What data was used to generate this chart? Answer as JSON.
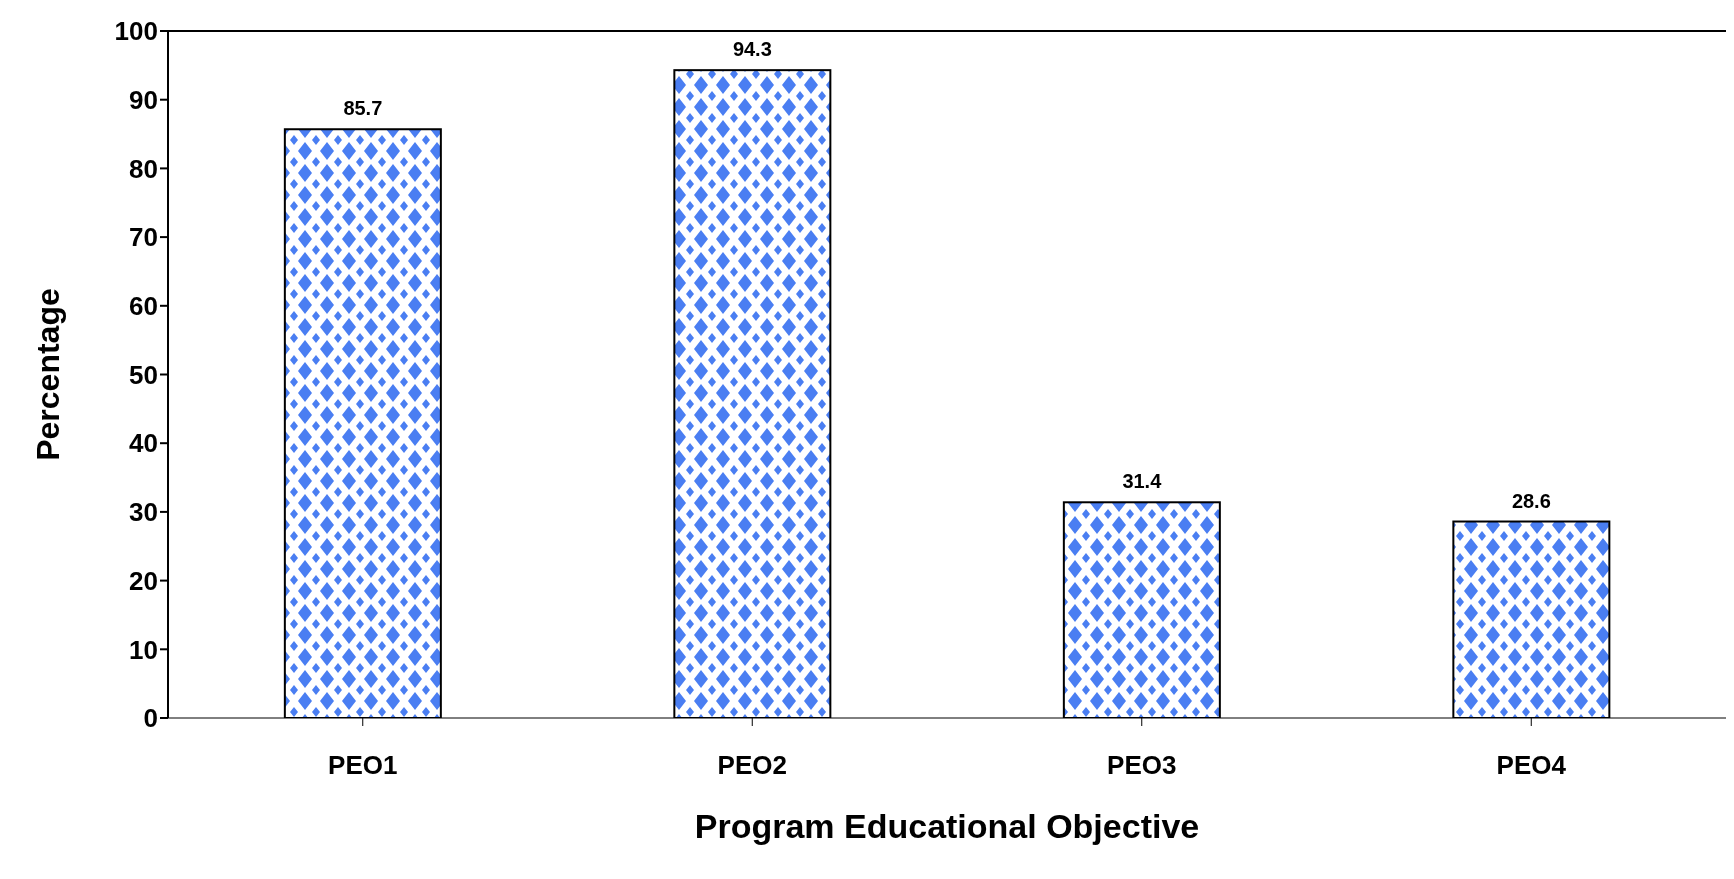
{
  "chart_data": {
    "type": "bar",
    "xlabel": "Program Educational Objective",
    "ylabel": "Percentage",
    "categories": [
      "PEO1",
      "PEO2",
      "PEO3",
      "PEO4"
    ],
    "values": [
      85.7,
      94.3,
      31.4,
      28.6
    ],
    "color": "#4a7ef2",
    "ylim": [
      0,
      100
    ],
    "yticks": [
      0,
      10,
      20,
      30,
      40,
      50,
      60,
      70,
      80,
      90,
      100
    ],
    "grid": false,
    "data_labels": true
  }
}
